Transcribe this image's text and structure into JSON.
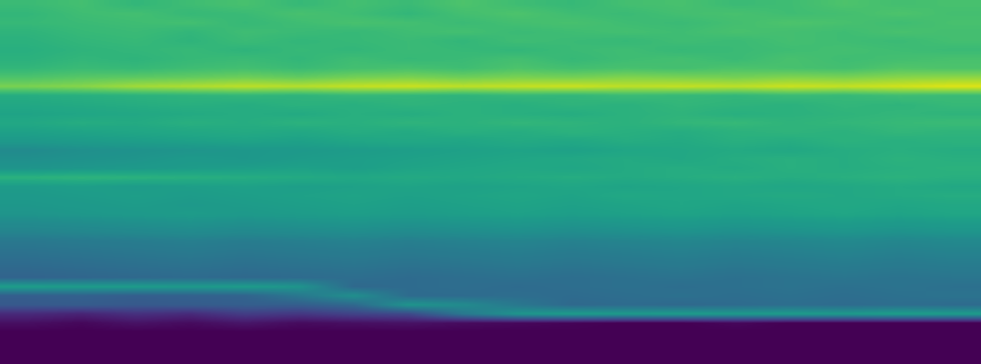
{
  "chart_data": {
    "type": "heatmap",
    "color": "viridis",
    "tick_labels": false,
    "zlim": [
      0,
      1
    ],
    "cells": [
      [
        0.68,
        0.7,
        0.66,
        0.69,
        0.71,
        0.67,
        0.7,
        0.68,
        0.72,
        0.69,
        0.67,
        0.7,
        0.71,
        0.68,
        0.69,
        0.72,
        0.7,
        0.71
      ],
      [
        0.66,
        0.69,
        0.7,
        0.67,
        0.68,
        0.71,
        0.69,
        0.66,
        0.7,
        0.72,
        0.69,
        0.68,
        0.7,
        0.71,
        0.69,
        0.7,
        0.72,
        0.7
      ],
      [
        0.67,
        0.68,
        0.69,
        0.7,
        0.67,
        0.69,
        0.71,
        0.7,
        0.68,
        0.7,
        0.71,
        0.69,
        0.68,
        0.7,
        0.72,
        0.71,
        0.69,
        0.71
      ],
      [
        0.65,
        0.67,
        0.68,
        0.66,
        0.69,
        0.68,
        0.67,
        0.69,
        0.7,
        0.68,
        0.69,
        0.7,
        0.69,
        0.71,
        0.7,
        0.69,
        0.71,
        0.7
      ],
      [
        0.64,
        0.66,
        0.67,
        0.65,
        0.68,
        0.66,
        0.67,
        0.68,
        0.66,
        0.69,
        0.68,
        0.67,
        0.69,
        0.68,
        0.7,
        0.69,
        0.68,
        0.7
      ],
      [
        0.63,
        0.65,
        0.66,
        0.67,
        0.65,
        0.67,
        0.66,
        0.68,
        0.67,
        0.66,
        0.68,
        0.69,
        0.67,
        0.68,
        0.69,
        0.7,
        0.69,
        0.68
      ],
      [
        0.64,
        0.66,
        0.65,
        0.67,
        0.68,
        0.66,
        0.69,
        0.67,
        0.68,
        0.7,
        0.67,
        0.69,
        0.7,
        0.68,
        0.71,
        0.69,
        0.7,
        0.71
      ],
      [
        0.66,
        0.68,
        0.67,
        0.69,
        0.7,
        0.68,
        0.7,
        0.71,
        0.69,
        0.72,
        0.7,
        0.71,
        0.7,
        0.72,
        0.71,
        0.7,
        0.73,
        0.72
      ],
      [
        0.72,
        0.74,
        0.75,
        0.76,
        0.78,
        0.76,
        0.79,
        0.8,
        0.78,
        0.8,
        0.79,
        0.81,
        0.8,
        0.79,
        0.81,
        0.8,
        0.82,
        0.83
      ],
      [
        0.8,
        0.82,
        0.86,
        0.88,
        0.9,
        0.89,
        0.91,
        0.92,
        0.9,
        0.91,
        0.92,
        0.9,
        0.91,
        0.9,
        0.92,
        0.91,
        0.93,
        0.95
      ],
      [
        0.62,
        0.63,
        0.64,
        0.65,
        0.66,
        0.65,
        0.67,
        0.66,
        0.65,
        0.67,
        0.66,
        0.68,
        0.67,
        0.66,
        0.68,
        0.67,
        0.69,
        0.68
      ],
      [
        0.6,
        0.61,
        0.62,
        0.63,
        0.62,
        0.64,
        0.63,
        0.65,
        0.64,
        0.63,
        0.65,
        0.64,
        0.66,
        0.65,
        0.64,
        0.66,
        0.65,
        0.67
      ],
      [
        0.58,
        0.59,
        0.6,
        0.61,
        0.62,
        0.61,
        0.63,
        0.62,
        0.64,
        0.63,
        0.62,
        0.64,
        0.65,
        0.63,
        0.64,
        0.65,
        0.66,
        0.65
      ],
      [
        0.6,
        0.62,
        0.61,
        0.63,
        0.62,
        0.64,
        0.63,
        0.65,
        0.64,
        0.66,
        0.65,
        0.64,
        0.66,
        0.67,
        0.65,
        0.66,
        0.67,
        0.68
      ],
      [
        0.57,
        0.58,
        0.59,
        0.6,
        0.61,
        0.6,
        0.62,
        0.61,
        0.63,
        0.62,
        0.64,
        0.63,
        0.62,
        0.64,
        0.65,
        0.64,
        0.66,
        0.65
      ],
      [
        0.54,
        0.55,
        0.56,
        0.57,
        0.58,
        0.57,
        0.59,
        0.6,
        0.59,
        0.61,
        0.6,
        0.62,
        0.61,
        0.63,
        0.62,
        0.64,
        0.63,
        0.64
      ],
      [
        0.48,
        0.5,
        0.51,
        0.52,
        0.53,
        0.54,
        0.55,
        0.56,
        0.57,
        0.58,
        0.57,
        0.59,
        0.6,
        0.61,
        0.6,
        0.62,
        0.63,
        0.62
      ],
      [
        0.5,
        0.51,
        0.52,
        0.54,
        0.53,
        0.55,
        0.56,
        0.57,
        0.58,
        0.59,
        0.6,
        0.61,
        0.6,
        0.62,
        0.63,
        0.62,
        0.64,
        0.63
      ],
      [
        0.52,
        0.53,
        0.54,
        0.55,
        0.56,
        0.57,
        0.56,
        0.58,
        0.59,
        0.6,
        0.59,
        0.61,
        0.62,
        0.61,
        0.63,
        0.62,
        0.63,
        0.64
      ],
      [
        0.64,
        0.65,
        0.64,
        0.63,
        0.62,
        0.61,
        0.6,
        0.61,
        0.6,
        0.61,
        0.62,
        0.61,
        0.62,
        0.63,
        0.62,
        0.63,
        0.64,
        0.63
      ],
      [
        0.55,
        0.56,
        0.55,
        0.56,
        0.57,
        0.56,
        0.57,
        0.58,
        0.57,
        0.58,
        0.59,
        0.58,
        0.59,
        0.6,
        0.59,
        0.6,
        0.61,
        0.6
      ],
      [
        0.54,
        0.55,
        0.56,
        0.55,
        0.56,
        0.57,
        0.58,
        0.57,
        0.58,
        0.59,
        0.58,
        0.6,
        0.59,
        0.6,
        0.61,
        0.6,
        0.61,
        0.62
      ],
      [
        0.53,
        0.54,
        0.55,
        0.54,
        0.55,
        0.56,
        0.57,
        0.56,
        0.57,
        0.58,
        0.57,
        0.58,
        0.59,
        0.58,
        0.59,
        0.6,
        0.59,
        0.6
      ],
      [
        0.52,
        0.53,
        0.54,
        0.55,
        0.54,
        0.55,
        0.56,
        0.55,
        0.56,
        0.57,
        0.56,
        0.57,
        0.58,
        0.57,
        0.58,
        0.59,
        0.58,
        0.59
      ],
      [
        0.48,
        0.49,
        0.5,
        0.51,
        0.5,
        0.51,
        0.52,
        0.51,
        0.52,
        0.53,
        0.52,
        0.53,
        0.54,
        0.53,
        0.54,
        0.55,
        0.54,
        0.55
      ],
      [
        0.45,
        0.46,
        0.47,
        0.48,
        0.47,
        0.48,
        0.49,
        0.48,
        0.49,
        0.5,
        0.49,
        0.5,
        0.51,
        0.5,
        0.51,
        0.52,
        0.51,
        0.52
      ],
      [
        0.4,
        0.41,
        0.42,
        0.43,
        0.42,
        0.43,
        0.44,
        0.43,
        0.44,
        0.45,
        0.44,
        0.45,
        0.46,
        0.45,
        0.46,
        0.47,
        0.46,
        0.47
      ],
      [
        0.38,
        0.39,
        0.4,
        0.41,
        0.4,
        0.41,
        0.42,
        0.41,
        0.42,
        0.43,
        0.42,
        0.43,
        0.44,
        0.43,
        0.44,
        0.45,
        0.44,
        0.45
      ],
      [
        0.36,
        0.37,
        0.38,
        0.39,
        0.38,
        0.39,
        0.4,
        0.39,
        0.4,
        0.41,
        0.4,
        0.41,
        0.42,
        0.41,
        0.42,
        0.43,
        0.42,
        0.43
      ],
      [
        0.34,
        0.35,
        0.36,
        0.37,
        0.36,
        0.37,
        0.38,
        0.37,
        0.38,
        0.39,
        0.38,
        0.39,
        0.4,
        0.39,
        0.4,
        0.41,
        0.4,
        0.41
      ],
      [
        0.32,
        0.33,
        0.34,
        0.35,
        0.34,
        0.35,
        0.36,
        0.35,
        0.36,
        0.37,
        0.36,
        0.37,
        0.38,
        0.37,
        0.38,
        0.39,
        0.38,
        0.39
      ],
      [
        0.56,
        0.55,
        0.55,
        0.54,
        0.55,
        0.52,
        0.34,
        0.35,
        0.36,
        0.35,
        0.36,
        0.37,
        0.36,
        0.37,
        0.38,
        0.37,
        0.38,
        0.37
      ],
      [
        0.3,
        0.31,
        0.3,
        0.31,
        0.32,
        0.4,
        0.5,
        0.35,
        0.35,
        0.36,
        0.35,
        0.36,
        0.37,
        0.36,
        0.37,
        0.36,
        0.37,
        0.38
      ],
      [
        0.28,
        0.29,
        0.28,
        0.29,
        0.3,
        0.3,
        0.34,
        0.52,
        0.48,
        0.4,
        0.34,
        0.35,
        0.34,
        0.35,
        0.36,
        0.35,
        0.36,
        0.35
      ],
      [
        0.12,
        0.1,
        0.14,
        0.12,
        0.18,
        0.16,
        0.2,
        0.22,
        0.4,
        0.52,
        0.55,
        0.54,
        0.55,
        0.54,
        0.55,
        0.54,
        0.56,
        0.55
      ],
      [
        0.04,
        0.02,
        0.05,
        0.03,
        0.06,
        0.03,
        0.04,
        0.05,
        0.03,
        0.02,
        0.01,
        0,
        0,
        0.02,
        0,
        0,
        0,
        0
      ],
      [
        0,
        0,
        0,
        0,
        0,
        0,
        0,
        0,
        0,
        0,
        0,
        0,
        0,
        0,
        0,
        0,
        0,
        0
      ],
      [
        0,
        0,
        0,
        0,
        0,
        0,
        0,
        0,
        0,
        0,
        0,
        0,
        0,
        0,
        0,
        0,
        0,
        0
      ],
      [
        0,
        0,
        0,
        0,
        0,
        0,
        0,
        0,
        0,
        0,
        0,
        0,
        0,
        0,
        0,
        0,
        0,
        0
      ],
      [
        0,
        0,
        0,
        0,
        0,
        0,
        0,
        0,
        0,
        0,
        0,
        0,
        0,
        0,
        0,
        0,
        0,
        0
      ]
    ]
  }
}
